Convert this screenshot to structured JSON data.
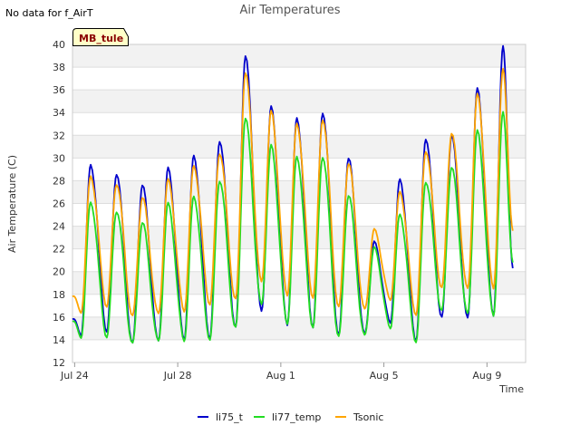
{
  "chart_data": {
    "type": "line",
    "title": "Air Temperatures",
    "no_data_note": "No data for f_AirT",
    "site_badge": "MB_tule",
    "xlabel": "Time",
    "ylabel": "Air Temperature (C)",
    "ylim": [
      12,
      40
    ],
    "yticks": [
      12,
      14,
      16,
      18,
      20,
      22,
      24,
      26,
      28,
      30,
      32,
      34,
      36,
      38,
      40
    ],
    "xlim": [
      "2024-07-23T22:00",
      "2024-08-10T12:00"
    ],
    "xticks": [
      {
        "label": "Jul 24",
        "date": "2024-07-24"
      },
      {
        "label": "Jul 28",
        "date": "2024-07-28"
      },
      {
        "label": "Aug 1",
        "date": "2024-08-01"
      },
      {
        "label": "Aug 5",
        "date": "2024-08-05"
      },
      {
        "label": "Aug 9",
        "date": "2024-08-09"
      }
    ],
    "grid": "horizontal bands",
    "legend_position": "bottom",
    "series": [
      {
        "name": "li75_t",
        "color": "#0000cc",
        "daily": [
          {
            "date": "2024-07-24",
            "min": 14.5,
            "max": 29.4
          },
          {
            "date": "2024-07-25",
            "min": 14.8,
            "max": 28.7
          },
          {
            "date": "2024-07-26",
            "min": 13.6,
            "max": 27.6
          },
          {
            "date": "2024-07-27",
            "min": 13.8,
            "max": 29.0
          },
          {
            "date": "2024-07-28",
            "min": 14.1,
            "max": 30.2
          },
          {
            "date": "2024-07-29",
            "min": 14.2,
            "max": 31.6
          },
          {
            "date": "2024-07-30",
            "min": 15.0,
            "max": 39.0
          },
          {
            "date": "2024-07-31",
            "min": 16.4,
            "max": 34.4
          },
          {
            "date": "2024-08-01",
            "min": 15.4,
            "max": 33.5
          },
          {
            "date": "2024-08-02",
            "min": 15.2,
            "max": 34.1
          },
          {
            "date": "2024-08-03",
            "min": 14.3,
            "max": 30.0
          },
          {
            "date": "2024-08-04",
            "min": 14.4,
            "max": 22.5
          },
          {
            "date": "2024-08-05",
            "min": 15.6,
            "max": 28.1
          },
          {
            "date": "2024-08-06",
            "min": 14.0,
            "max": 31.8
          },
          {
            "date": "2024-08-07",
            "min": 15.9,
            "max": 32.0
          },
          {
            "date": "2024-08-08",
            "min": 15.8,
            "max": 36.0
          },
          {
            "date": "2024-08-09",
            "min": 16.2,
            "max": 39.8
          }
        ],
        "final": 20.3
      },
      {
        "name": "li77_temp",
        "color": "#22dd22",
        "daily": [
          {
            "date": "2024-07-24",
            "min": 14.3,
            "max": 26.1
          },
          {
            "date": "2024-07-25",
            "min": 14.3,
            "max": 25.4
          },
          {
            "date": "2024-07-26",
            "min": 13.6,
            "max": 24.3
          },
          {
            "date": "2024-07-27",
            "min": 13.8,
            "max": 25.9
          },
          {
            "date": "2024-07-28",
            "min": 14.0,
            "max": 26.6
          },
          {
            "date": "2024-07-29",
            "min": 14.1,
            "max": 28.1
          },
          {
            "date": "2024-07-30",
            "min": 15.0,
            "max": 33.5
          },
          {
            "date": "2024-07-31",
            "min": 17.0,
            "max": 31.0
          },
          {
            "date": "2024-08-01",
            "min": 15.5,
            "max": 30.1
          },
          {
            "date": "2024-08-02",
            "min": 15.2,
            "max": 30.2
          },
          {
            "date": "2024-08-03",
            "min": 14.2,
            "max": 26.7
          },
          {
            "date": "2024-08-04",
            "min": 14.3,
            "max": 22.0
          },
          {
            "date": "2024-08-05",
            "min": 15.1,
            "max": 25.0
          },
          {
            "date": "2024-08-06",
            "min": 13.9,
            "max": 28.0
          },
          {
            "date": "2024-08-07",
            "min": 16.5,
            "max": 29.2
          },
          {
            "date": "2024-08-08",
            "min": 16.2,
            "max": 32.3
          },
          {
            "date": "2024-08-09",
            "min": 16.2,
            "max": 34.0
          }
        ],
        "final": 20.8
      },
      {
        "name": "Tsonic",
        "color": "#ffa500",
        "daily": [
          {
            "date": "2024-07-24",
            "min": 16.5,
            "max": 28.4
          },
          {
            "date": "2024-07-25",
            "min": 17.0,
            "max": 27.8
          },
          {
            "date": "2024-07-26",
            "min": 16.0,
            "max": 26.5
          },
          {
            "date": "2024-07-27",
            "min": 16.2,
            "max": 28.0
          },
          {
            "date": "2024-07-28",
            "min": 16.6,
            "max": 29.3
          },
          {
            "date": "2024-07-29",
            "min": 17.2,
            "max": 30.5
          },
          {
            "date": "2024-07-30",
            "min": 17.5,
            "max": 37.5
          },
          {
            "date": "2024-07-31",
            "min": 19.0,
            "max": 34.0
          },
          {
            "date": "2024-08-01",
            "min": 18.0,
            "max": 33.0
          },
          {
            "date": "2024-08-02",
            "min": 17.8,
            "max": 33.5
          },
          {
            "date": "2024-08-03",
            "min": 16.8,
            "max": 29.5
          },
          {
            "date": "2024-08-04",
            "min": 16.6,
            "max": 23.6
          },
          {
            "date": "2024-08-05",
            "min": 17.6,
            "max": 27.0
          },
          {
            "date": "2024-08-06",
            "min": 16.3,
            "max": 30.7
          },
          {
            "date": "2024-08-07",
            "min": 18.5,
            "max": 32.2
          },
          {
            "date": "2024-08-08",
            "min": 18.4,
            "max": 35.5
          },
          {
            "date": "2024-08-09",
            "min": 18.6,
            "max": 37.8
          }
        ],
        "final": 23.6
      }
    ]
  }
}
